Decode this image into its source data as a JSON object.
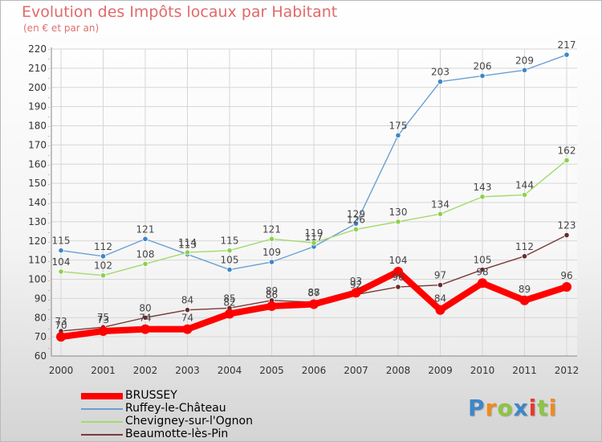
{
  "title": "Evolution des Impôts locaux par Habitant",
  "subtitle": "(en € et par an)",
  "chart_data": {
    "type": "line",
    "x": [
      2000,
      2001,
      2002,
      2003,
      2004,
      2005,
      2006,
      2007,
      2008,
      2009,
      2010,
      2011,
      2012
    ],
    "ylim": [
      60,
      220
    ],
    "yticks": [
      60,
      70,
      80,
      90,
      100,
      110,
      120,
      130,
      140,
      150,
      160,
      170,
      180,
      190,
      200,
      210,
      220
    ],
    "grid": true,
    "legend_position": "bottom-left",
    "series": [
      {
        "name": "Ruffey-le-Château",
        "color": "#6a9fd4",
        "marker_color": "#3f86c8",
        "values": [
          115,
          112,
          121,
          113,
          105,
          109,
          117,
          129,
          175,
          203,
          206,
          209,
          217
        ],
        "labels": [
          "115",
          "112",
          "121",
          "113",
          "105",
          "109",
          "117",
          "129",
          "175",
          "203",
          "206",
          "209",
          "217"
        ]
      },
      {
        "name": "Chevigney-sur-l'Ognon",
        "color": "#a3da6c",
        "marker_color": "#8dd04c",
        "values": [
          104,
          102,
          108,
          114,
          115,
          121,
          119,
          126,
          130,
          134,
          143,
          144,
          162
        ],
        "labels": [
          "104",
          "102",
          "108",
          "114",
          "115",
          "121",
          "119",
          "126",
          "130",
          "134",
          "143",
          "144",
          "162"
        ]
      },
      {
        "name": "Beaumotte-lès-Pin",
        "color": "#7a3a3a",
        "marker_color": "#6b2a2a",
        "values": [
          73,
          75,
          80,
          84,
          85,
          89,
          88,
          92,
          96,
          97,
          105,
          112,
          123
        ],
        "labels": [
          "73",
          "75",
          "80",
          "84",
          "85",
          "89",
          "88",
          "92",
          "96",
          "97",
          "105",
          "112",
          "123"
        ]
      },
      {
        "name": "BRUSSEY",
        "color": "#ff0000",
        "marker_color": "#ff0000",
        "thick": true,
        "values": [
          70,
          73,
          74,
          74,
          82,
          86,
          87,
          93,
          104,
          84,
          98,
          89,
          96
        ],
        "labels": [
          "70",
          "73",
          "74",
          "74",
          "82",
          "86",
          "87",
          "93",
          "104",
          "84",
          "98",
          "89",
          "96"
        ]
      }
    ]
  },
  "legend": {
    "items": [
      {
        "label": "BRUSSEY",
        "color": "#ff0000",
        "thick": true
      },
      {
        "label": "Ruffey-le-Château",
        "color": "#6a9fd4"
      },
      {
        "label": "Chevigney-sur-l'Ognon",
        "color": "#a3da6c"
      },
      {
        "label": "Beaumotte-lès-Pin",
        "color": "#7a3a3a"
      }
    ]
  },
  "logo": {
    "letters": [
      "P",
      "r",
      "o",
      "x",
      "i",
      "t",
      "i"
    ],
    "colors": [
      "#3f86c8",
      "#f08a1c",
      "#8dc63f",
      "#3f86c8",
      "#e63b2e",
      "#8dc63f",
      "#f08a1c"
    ]
  }
}
